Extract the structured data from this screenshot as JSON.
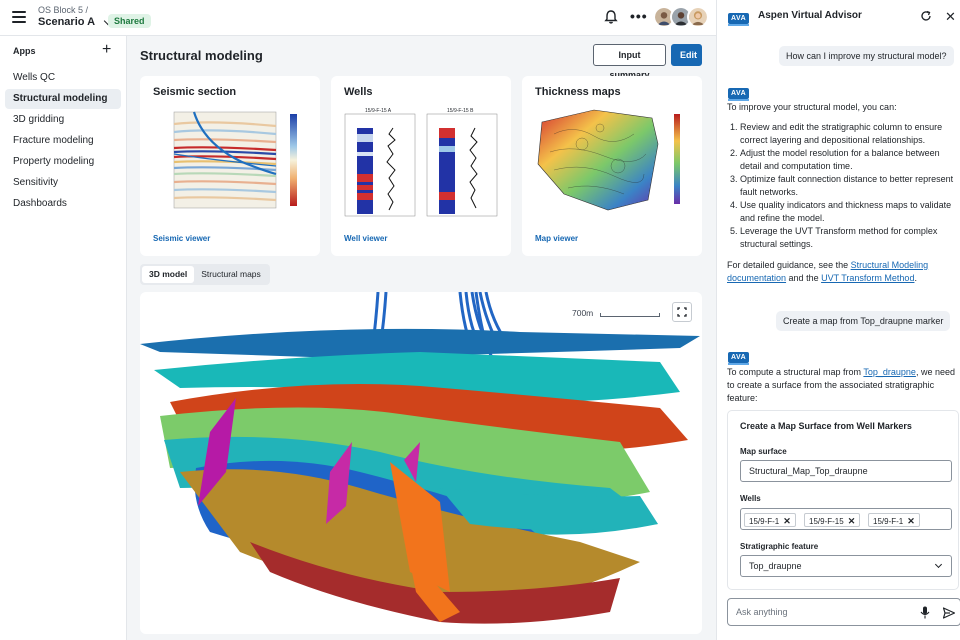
{
  "topbar": {
    "crumb": "OS Block 5  /",
    "scenario": "Scenario A",
    "shared_badge": "Shared",
    "more_label": "•••"
  },
  "sidebar": {
    "heading": "Apps",
    "add_label": "+",
    "items": [
      {
        "label": "Wells QC"
      },
      {
        "label": "Structural modeling"
      },
      {
        "label": "3D gridding"
      },
      {
        "label": "Fracture modeling"
      },
      {
        "label": "Property modeling"
      },
      {
        "label": "Sensitivity"
      },
      {
        "label": "Dashboards"
      }
    ]
  },
  "main": {
    "title": "Structural modeling",
    "input_summary_label": "Input summary",
    "edit_label": "Edit",
    "cards": [
      {
        "title": "Seismic section",
        "link": "Seismic viewer"
      },
      {
        "title": "Wells",
        "link": "Well viewer",
        "well_a": "15/9-F-15 A",
        "well_b": "15/9-F-15 B"
      },
      {
        "title": "Thickness maps",
        "link": "Map viewer"
      }
    ],
    "tabs": [
      {
        "label": "3D model"
      },
      {
        "label": "Structural maps"
      }
    ],
    "viewer": {
      "scale_label": "700m"
    }
  },
  "advisor": {
    "logo": "AVA",
    "title": "Aspen Virtual Advisor",
    "close_label": "✕",
    "user_msg_1": "How can I improve my structural model?",
    "bot_intro": "To improve your structural model, you can:",
    "bot_list": [
      "Review and edit the stratigraphic column to ensure correct layering and depositional relationships.",
      "Adjust the model resolution for a balance between detail and computation time.",
      "Optimize fault connection distance to better represent fault networks.",
      "Use quality indicators and thickness maps to validate and refine the model.",
      "Leverage the UVT Transform method for complex structural settings."
    ],
    "bot_guidance_pre": "For detailed guidance, see the ",
    "bot_link_1": "Structural Modeling documentation",
    "bot_guidance_mid": " and the ",
    "bot_link_2": "UVT Transform Method",
    "bot_guidance_post": ".",
    "user_msg_2": "Create a map from Top_draupne marker",
    "bot2_pre": "To compute a structural map from ",
    "bot2_link": "Top_draupne",
    "bot2_post": ", we need to create a surface from the associated stratigraphic feature:",
    "form": {
      "title": "Create a Map Surface from Well Markers",
      "map_surface_label": "Map surface",
      "map_surface_value": "Structural_Map_Top_draupne",
      "wells_label": "Wells",
      "wells": [
        "15/9-F-1",
        "15/9-F-15",
        "15/9-F-1"
      ],
      "chip_x": "✕",
      "strat_label": "Stratigraphic feature",
      "strat_value": "Top_draupne"
    },
    "ask_placeholder": "Ask anything"
  },
  "colors": {
    "primary": "#1768b3",
    "shared_bg": "#dff3e6",
    "shared_text": "#1e7a3f"
  }
}
